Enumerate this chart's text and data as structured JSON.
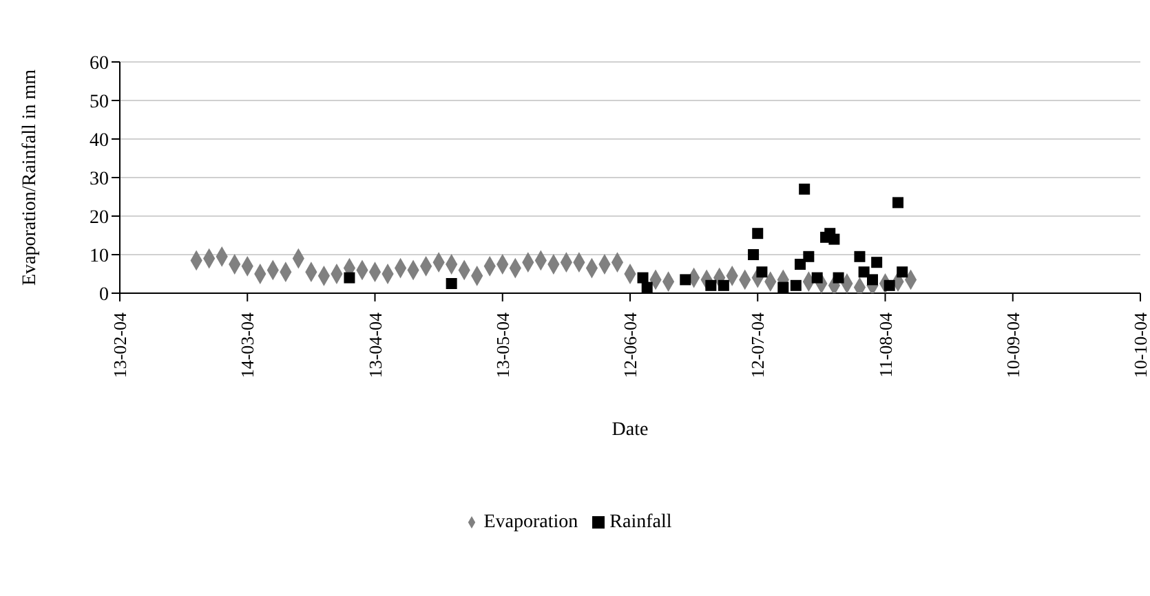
{
  "chart_data": {
    "type": "scatter",
    "xlabel": "Date",
    "ylabel": "Evaporation/Rainfall in mm",
    "xlim": [
      "2004-02-13",
      "2004-10-10"
    ],
    "xticks": [
      {
        "value": "2004-02-13",
        "label": "13-02-04"
      },
      {
        "value": "2004-03-14",
        "label": "14-03-04"
      },
      {
        "value": "2004-04-13",
        "label": "13-04-04"
      },
      {
        "value": "2004-05-13",
        "label": "13-05-04"
      },
      {
        "value": "2004-06-12",
        "label": "12-06-04"
      },
      {
        "value": "2004-07-12",
        "label": "12-07-04"
      },
      {
        "value": "2004-08-11",
        "label": "11-08-04"
      },
      {
        "value": "2004-09-10",
        "label": "10-09-04"
      },
      {
        "value": "2004-10-10",
        "label": "10-10-04"
      }
    ],
    "ylim": [
      0,
      60
    ],
    "yticks": [
      0,
      10,
      20,
      30,
      40,
      50,
      60
    ],
    "grid": "y",
    "legend": "bottom",
    "series": [
      {
        "name": "Evaporation",
        "color": "#808080",
        "marker": "diamond",
        "x": [
          "2004-03-02",
          "2004-03-05",
          "2004-03-08",
          "2004-03-11",
          "2004-03-14",
          "2004-03-17",
          "2004-03-20",
          "2004-03-23",
          "2004-03-26",
          "2004-03-29",
          "2004-04-01",
          "2004-04-04",
          "2004-04-07",
          "2004-04-10",
          "2004-04-13",
          "2004-04-16",
          "2004-04-19",
          "2004-04-22",
          "2004-04-25",
          "2004-04-28",
          "2004-05-01",
          "2004-05-04",
          "2004-05-07",
          "2004-05-10",
          "2004-05-13",
          "2004-05-16",
          "2004-05-19",
          "2004-05-22",
          "2004-05-25",
          "2004-05-28",
          "2004-05-31",
          "2004-06-03",
          "2004-06-06",
          "2004-06-09",
          "2004-06-12",
          "2004-06-15",
          "2004-06-18",
          "2004-06-21",
          "2004-06-24",
          "2004-06-27",
          "2004-06-30",
          "2004-07-03",
          "2004-07-06",
          "2004-07-09",
          "2004-07-12",
          "2004-07-15",
          "2004-07-18",
          "2004-07-21",
          "2004-07-24",
          "2004-07-27",
          "2004-07-30",
          "2004-08-02",
          "2004-08-05",
          "2004-08-08",
          "2004-08-11",
          "2004-08-14",
          "2004-08-17"
        ],
        "values": [
          8.5,
          9,
          9.5,
          7.5,
          7,
          5,
          6,
          5.5,
          9,
          5.5,
          4.5,
          5,
          6.5,
          6,
          5.5,
          5,
          6.5,
          6,
          7,
          8,
          7.5,
          6,
          4.5,
          7,
          7.5,
          6.5,
          8,
          8.5,
          7.5,
          8,
          8,
          6.5,
          7.5,
          8,
          5,
          null,
          3.5,
          3,
          null,
          4,
          3.5,
          4,
          4.5,
          3.5,
          4,
          3,
          3.5,
          null,
          3,
          2.5,
          2,
          2.5,
          1.5,
          2,
          2.5,
          3,
          3.5
        ]
      },
      {
        "name": "Rainfall",
        "color": "#000000",
        "marker": "square",
        "x": [
          "2004-04-07",
          "2004-05-01",
          "2004-06-15",
          "2004-06-16",
          "2004-06-25",
          "2004-07-01",
          "2004-07-04",
          "2004-07-11",
          "2004-07-12",
          "2004-07-13",
          "2004-07-18",
          "2004-07-21",
          "2004-07-22",
          "2004-07-23",
          "2004-07-24",
          "2004-07-26",
          "2004-07-28",
          "2004-07-29",
          "2004-07-30",
          "2004-07-31",
          "2004-08-05",
          "2004-08-06",
          "2004-08-08",
          "2004-08-09",
          "2004-08-12",
          "2004-08-14",
          "2004-08-15"
        ],
        "values": [
          4,
          2.5,
          4,
          1.5,
          3.5,
          2,
          2,
          10,
          15.5,
          5.5,
          1.5,
          2,
          7.5,
          27,
          9.5,
          4,
          14.5,
          15.5,
          14,
          4,
          9.5,
          5.5,
          3.5,
          8,
          2,
          23.5,
          5.5
        ]
      }
    ]
  }
}
